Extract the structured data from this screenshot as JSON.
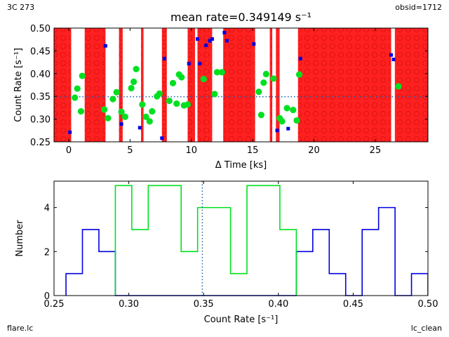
{
  "corners": {
    "top_left": "3C 273",
    "top_right": "obsid=1712",
    "bottom_left": "flare.lc",
    "bottom_right": "lc_clean"
  },
  "colors": {
    "flare_band": "#ff2020",
    "green": "#00e020",
    "blue": "#0000e0",
    "mean_line": "#1f5fa8"
  },
  "chart_data": [
    {
      "type": "scatter",
      "title": "mean rate=0.349149 s⁻¹",
      "xlabel": "Δ Time [ks]",
      "ylabel": "Count Rate [s⁻¹]",
      "xlim": [
        -1.2,
        29.3
      ],
      "ylim": [
        0.25,
        0.5
      ],
      "xticks": [
        0,
        5,
        10,
        15,
        20,
        25
      ],
      "yticks": [
        0.25,
        0.3,
        0.35,
        0.4,
        0.45,
        0.5
      ],
      "mean_rate": 0.349149,
      "flare_intervals": [
        [
          -1.2,
          0.2
        ],
        [
          1.3,
          3.0
        ],
        [
          4.1,
          4.4
        ],
        [
          5.9,
          6.1
        ],
        [
          7.6,
          8.0
        ],
        [
          9.7,
          10.3
        ],
        [
          10.5,
          11.3
        ],
        [
          11.3,
          11.7
        ],
        [
          12.6,
          15.2
        ],
        [
          16.4,
          16.6
        ],
        [
          16.9,
          17.2
        ],
        [
          18.7,
          19.6
        ],
        [
          19.6,
          26.3
        ],
        [
          26.6,
          29.3
        ]
      ],
      "series": [
        {
          "name": "good",
          "marker": "circle",
          "color": "#00e020",
          "x": [
            0.5,
            0.7,
            1.0,
            1.1,
            2.9,
            3.2,
            3.6,
            3.9,
            4.3,
            4.6,
            5.1,
            5.3,
            5.5,
            6.0,
            6.3,
            6.6,
            6.8,
            7.2,
            7.4,
            8.2,
            8.5,
            8.8,
            9.0,
            9.2,
            9.4,
            9.7,
            11.0,
            11.9,
            12.1,
            12.5,
            15.5,
            15.7,
            15.9,
            16.1,
            16.7,
            17.2,
            17.4,
            17.8,
            18.3,
            18.6,
            18.8,
            26.9
          ],
          "y": [
            0.347,
            0.367,
            0.317,
            0.395,
            0.321,
            0.302,
            0.344,
            0.359,
            0.316,
            0.305,
            0.368,
            0.382,
            0.41,
            0.332,
            0.305,
            0.295,
            0.317,
            0.35,
            0.356,
            0.34,
            0.379,
            0.334,
            0.398,
            0.392,
            0.33,
            0.332,
            0.388,
            0.355,
            0.403,
            0.403,
            0.36,
            0.309,
            0.38,
            0.399,
            0.389,
            0.302,
            0.295,
            0.324,
            0.32,
            0.297,
            0.398,
            0.372
          ]
        },
        {
          "name": "flare",
          "marker": "square",
          "color": "#0000e0",
          "x": [
            0.1,
            3.0,
            4.3,
            5.8,
            7.6,
            7.8,
            9.8,
            10.5,
            10.7,
            11.2,
            11.5,
            11.7,
            12.7,
            12.9,
            15.1,
            17.0,
            17.9,
            18.9,
            26.3,
            26.5
          ],
          "y": [
            0.271,
            0.461,
            0.289,
            0.281,
            0.258,
            0.433,
            0.422,
            0.476,
            0.422,
            0.462,
            0.472,
            0.476,
            0.49,
            0.472,
            0.465,
            0.275,
            0.279,
            0.433,
            0.441,
            0.431
          ]
        }
      ]
    },
    {
      "type": "histogram",
      "title": "",
      "xlabel": "Count Rate [s⁻¹]",
      "ylabel": "Number",
      "xlim": [
        0.25,
        0.5
      ],
      "ylim": [
        0,
        5.2
      ],
      "xticks": [
        0.25,
        0.3,
        0.35,
        0.4,
        0.45,
        0.5
      ],
      "yticks": [
        0,
        2,
        4
      ],
      "mean_rate": 0.349149,
      "bin_edges": [
        0.258,
        0.269,
        0.28,
        0.291,
        0.302,
        0.313,
        0.324,
        0.335,
        0.346,
        0.357,
        0.368,
        0.379,
        0.39,
        0.401,
        0.412,
        0.423,
        0.434,
        0.445,
        0.456,
        0.467,
        0.478,
        0.489,
        0.5
      ],
      "series": [
        {
          "name": "flare",
          "color": "#0000e0",
          "counts": [
            1,
            3,
            2,
            0,
            0,
            0,
            0,
            0,
            0,
            0,
            0,
            0,
            0,
            0,
            2,
            3,
            1,
            0,
            3,
            4,
            0,
            1
          ]
        },
        {
          "name": "good",
          "color": "#00e020",
          "counts": [
            0,
            0,
            0,
            5,
            3,
            5,
            5,
            2,
            4,
            4,
            1,
            5,
            5,
            3,
            0,
            0,
            0,
            0,
            0,
            0,
            0,
            0
          ]
        }
      ]
    }
  ]
}
